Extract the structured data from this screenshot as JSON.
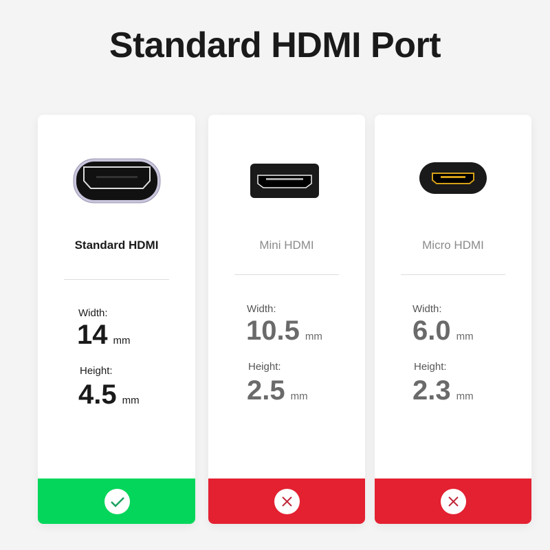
{
  "title": "Standard HDMI Port",
  "colors": {
    "ok": "#03d65a",
    "bad": "#e32131"
  },
  "cards": [
    {
      "name": "Standard HDMI",
      "width_label": "Width:",
      "width": "14",
      "height_label": "Height:",
      "height": "4.5",
      "unit": "mm",
      "status": "check-icon"
    },
    {
      "name": "Mini HDMI",
      "width_label": "Width:",
      "width": "10.5",
      "height_label": "Height:",
      "height": "2.5",
      "unit": "mm",
      "status": "x-icon"
    },
    {
      "name": "Micro HDMI",
      "width_label": "Width:",
      "width": "6.0",
      "height_label": "Height:",
      "height": "2.3",
      "unit": "mm",
      "status": "x-icon"
    }
  ]
}
